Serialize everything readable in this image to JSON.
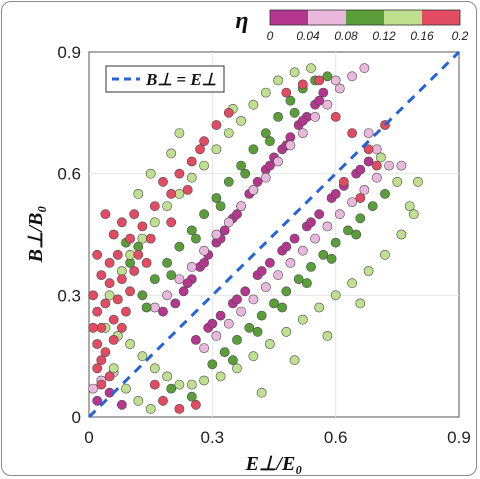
{
  "chart_data": {
    "type": "scatter",
    "xlabel": "E⊥/E₀",
    "ylabel": "B⊥/B₀",
    "xlim": [
      0,
      0.9
    ],
    "ylim": [
      0,
      0.9
    ],
    "xticks": [
      "0",
      "0.3",
      "0.6",
      "0.9"
    ],
    "yticks": [
      "0",
      "0.3",
      "0.6",
      "0.9"
    ],
    "grid": true,
    "legend": {
      "position": "top-left",
      "entries": [
        "B⊥ = E⊥"
      ]
    },
    "reference_line": {
      "label": "B⊥ = E⊥",
      "slope": 1,
      "intercept": 0,
      "style": "dashed",
      "color": "#2563d8"
    },
    "colorbar": {
      "label": "η",
      "position": "top",
      "ticks": [
        "0",
        "0.04",
        "0.08",
        "0.12",
        "0.16",
        "0.2"
      ],
      "bins": [
        {
          "range": [
            0.0,
            0.04
          ],
          "color": "#b5368f"
        },
        {
          "range": [
            0.04,
            0.08
          ],
          "color": "#e9b8dc"
        },
        {
          "range": [
            0.08,
            0.12
          ],
          "color": "#5a9e3a"
        },
        {
          "range": [
            0.12,
            0.16
          ],
          "color": "#bfe08f"
        },
        {
          "range": [
            0.16,
            0.2
          ],
          "color": "#e24b62"
        }
      ]
    },
    "series": [
      {
        "eta_bin": "0-0.04",
        "color": "#b5368f",
        "points": [
          [
            0.18,
            0.26
          ],
          [
            0.21,
            0.28
          ],
          [
            0.23,
            0.31
          ],
          [
            0.25,
            0.34
          ],
          [
            0.27,
            0.37
          ],
          [
            0.29,
            0.4
          ],
          [
            0.31,
            0.43
          ],
          [
            0.33,
            0.46
          ],
          [
            0.35,
            0.49
          ],
          [
            0.37,
            0.52
          ],
          [
            0.39,
            0.55
          ],
          [
            0.41,
            0.58
          ],
          [
            0.43,
            0.61
          ],
          [
            0.45,
            0.64
          ],
          [
            0.47,
            0.66
          ],
          [
            0.49,
            0.69
          ],
          [
            0.51,
            0.72
          ],
          [
            0.53,
            0.74
          ],
          [
            0.55,
            0.77
          ],
          [
            0.57,
            0.8
          ],
          [
            0.24,
            0.33
          ],
          [
            0.28,
            0.38
          ],
          [
            0.32,
            0.44
          ],
          [
            0.36,
            0.5
          ],
          [
            0.4,
            0.56
          ],
          [
            0.44,
            0.62
          ],
          [
            0.48,
            0.67
          ],
          [
            0.52,
            0.73
          ],
          [
            0.56,
            0.78
          ],
          [
            0.26,
            0.19
          ],
          [
            0.29,
            0.22
          ],
          [
            0.32,
            0.25
          ],
          [
            0.35,
            0.28
          ],
          [
            0.38,
            0.31
          ],
          [
            0.41,
            0.35
          ],
          [
            0.44,
            0.38
          ],
          [
            0.47,
            0.41
          ],
          [
            0.5,
            0.44
          ],
          [
            0.53,
            0.47
          ],
          [
            0.56,
            0.5
          ],
          [
            0.59,
            0.54
          ],
          [
            0.62,
            0.57
          ],
          [
            0.65,
            0.6
          ],
          [
            0.68,
            0.63
          ],
          [
            0.3,
            0.23
          ],
          [
            0.36,
            0.29
          ],
          [
            0.42,
            0.36
          ],
          [
            0.48,
            0.42
          ],
          [
            0.54,
            0.48
          ],
          [
            0.6,
            0.55
          ],
          [
            0.66,
            0.61
          ],
          [
            0.02,
            0.04
          ],
          [
            0.05,
            0.06
          ],
          [
            0.08,
            0.03
          ]
        ]
      },
      {
        "eta_bin": "0.04-0.08",
        "color": "#e9b8dc",
        "points": [
          [
            0.16,
            0.27
          ],
          [
            0.19,
            0.3
          ],
          [
            0.22,
            0.34
          ],
          [
            0.25,
            0.37
          ],
          [
            0.28,
            0.41
          ],
          [
            0.31,
            0.45
          ],
          [
            0.34,
            0.48
          ],
          [
            0.37,
            0.52
          ],
          [
            0.4,
            0.56
          ],
          [
            0.43,
            0.59
          ],
          [
            0.46,
            0.63
          ],
          [
            0.49,
            0.67
          ],
          [
            0.52,
            0.7
          ],
          [
            0.55,
            0.74
          ],
          [
            0.58,
            0.77
          ],
          [
            0.61,
            0.81
          ],
          [
            0.64,
            0.84
          ],
          [
            0.67,
            0.86
          ],
          [
            0.28,
            0.17
          ],
          [
            0.31,
            0.2
          ],
          [
            0.34,
            0.23
          ],
          [
            0.37,
            0.26
          ],
          [
            0.4,
            0.29
          ],
          [
            0.43,
            0.32
          ],
          [
            0.46,
            0.35
          ],
          [
            0.49,
            0.38
          ],
          [
            0.52,
            0.41
          ],
          [
            0.55,
            0.44
          ],
          [
            0.58,
            0.47
          ],
          [
            0.61,
            0.5
          ],
          [
            0.64,
            0.53
          ],
          [
            0.67,
            0.56
          ],
          [
            0.7,
            0.59
          ],
          [
            0.73,
            0.62
          ],
          [
            0.76,
            0.62
          ],
          [
            0.7,
            0.66
          ],
          [
            0.68,
            0.7
          ],
          [
            0.6,
            0.83
          ],
          [
            0.03,
            0.09
          ],
          [
            0.06,
            0.11
          ],
          [
            0.01,
            0.07
          ]
        ]
      },
      {
        "eta_bin": "0.08-0.12",
        "color": "#5a9e3a",
        "points": [
          [
            0.13,
            0.3
          ],
          [
            0.16,
            0.34
          ],
          [
            0.19,
            0.38
          ],
          [
            0.22,
            0.42
          ],
          [
            0.25,
            0.46
          ],
          [
            0.28,
            0.5
          ],
          [
            0.31,
            0.54
          ],
          [
            0.34,
            0.58
          ],
          [
            0.37,
            0.62
          ],
          [
            0.4,
            0.66
          ],
          [
            0.43,
            0.7
          ],
          [
            0.46,
            0.74
          ],
          [
            0.49,
            0.78
          ],
          [
            0.52,
            0.81
          ],
          [
            0.55,
            0.83
          ],
          [
            0.58,
            0.84
          ],
          [
            0.14,
            0.27
          ],
          [
            0.2,
            0.35
          ],
          [
            0.26,
            0.44
          ],
          [
            0.32,
            0.52
          ],
          [
            0.38,
            0.6
          ],
          [
            0.44,
            0.68
          ],
          [
            0.5,
            0.75
          ],
          [
            0.3,
            0.13
          ],
          [
            0.33,
            0.16
          ],
          [
            0.36,
            0.19
          ],
          [
            0.39,
            0.22
          ],
          [
            0.42,
            0.25
          ],
          [
            0.45,
            0.28
          ],
          [
            0.48,
            0.31
          ],
          [
            0.51,
            0.34
          ],
          [
            0.54,
            0.37
          ],
          [
            0.57,
            0.4
          ],
          [
            0.6,
            0.43
          ],
          [
            0.63,
            0.46
          ],
          [
            0.66,
            0.49
          ],
          [
            0.69,
            0.52
          ],
          [
            0.72,
            0.55
          ],
          [
            0.35,
            0.14
          ],
          [
            0.41,
            0.21
          ],
          [
            0.47,
            0.27
          ],
          [
            0.53,
            0.33
          ],
          [
            0.59,
            0.39
          ],
          [
            0.65,
            0.45
          ],
          [
            0.12,
            0.42
          ],
          [
            0.1,
            0.38
          ],
          [
            0.09,
            0.43
          ],
          [
            0.2,
            0.07
          ],
          [
            0.25,
            0.05
          ]
        ]
      },
      {
        "eta_bin": "0.12-0.16",
        "color": "#bfe08f",
        "points": [
          [
            0.08,
            0.36
          ],
          [
            0.1,
            0.4
          ],
          [
            0.13,
            0.44
          ],
          [
            0.16,
            0.48
          ],
          [
            0.19,
            0.52
          ],
          [
            0.22,
            0.55
          ],
          [
            0.25,
            0.59
          ],
          [
            0.28,
            0.62
          ],
          [
            0.31,
            0.66
          ],
          [
            0.34,
            0.7
          ],
          [
            0.37,
            0.73
          ],
          [
            0.4,
            0.77
          ],
          [
            0.43,
            0.8
          ],
          [
            0.46,
            0.83
          ],
          [
            0.5,
            0.85
          ],
          [
            0.54,
            0.86
          ],
          [
            0.2,
            0.65
          ],
          [
            0.15,
            0.6
          ],
          [
            0.22,
            0.7
          ],
          [
            0.35,
            0.76
          ],
          [
            0.04,
            0.22
          ],
          [
            0.07,
            0.2
          ],
          [
            0.1,
            0.18
          ],
          [
            0.13,
            0.15
          ],
          [
            0.16,
            0.12
          ],
          [
            0.19,
            0.1
          ],
          [
            0.22,
            0.08
          ],
          [
            0.25,
            0.08
          ],
          [
            0.28,
            0.09
          ],
          [
            0.32,
            0.1
          ],
          [
            0.36,
            0.12
          ],
          [
            0.4,
            0.15
          ],
          [
            0.44,
            0.18
          ],
          [
            0.48,
            0.21
          ],
          [
            0.52,
            0.24
          ],
          [
            0.56,
            0.27
          ],
          [
            0.6,
            0.3
          ],
          [
            0.64,
            0.33
          ],
          [
            0.68,
            0.36
          ],
          [
            0.72,
            0.4
          ],
          [
            0.76,
            0.45
          ],
          [
            0.78,
            0.52
          ],
          [
            0.8,
            0.58
          ],
          [
            0.79,
            0.5
          ],
          [
            0.75,
            0.58
          ],
          [
            0.71,
            0.64
          ],
          [
            0.06,
            0.12
          ],
          [
            0.09,
            0.07
          ],
          [
            0.12,
            0.04
          ],
          [
            0.15,
            0.02
          ],
          [
            0.42,
            0.06
          ],
          [
            0.5,
            0.14
          ],
          [
            0.58,
            0.2
          ],
          [
            0.66,
            0.28
          ],
          [
            0.12,
            0.55
          ],
          [
            0.05,
            0.3
          ]
        ]
      },
      {
        "eta_bin": "0.16-0.2",
        "color": "#e24b62",
        "points": [
          [
            0.01,
            0.3
          ],
          [
            0.02,
            0.26
          ],
          [
            0.03,
            0.22
          ],
          [
            0.04,
            0.28
          ],
          [
            0.05,
            0.33
          ],
          [
            0.02,
            0.18
          ],
          [
            0.03,
            0.14
          ],
          [
            0.06,
            0.24
          ],
          [
            0.07,
            0.29
          ],
          [
            0.08,
            0.34
          ],
          [
            0.09,
            0.26
          ],
          [
            0.1,
            0.31
          ],
          [
            0.11,
            0.36
          ],
          [
            0.04,
            0.16
          ],
          [
            0.06,
            0.19
          ],
          [
            0.08,
            0.22
          ],
          [
            0.01,
            0.22
          ],
          [
            0.0,
            0.26
          ],
          [
            0.05,
            0.38
          ],
          [
            0.07,
            0.4
          ],
          [
            0.03,
            0.35
          ],
          [
            0.1,
            0.44
          ],
          [
            0.06,
            0.45
          ],
          [
            0.12,
            0.4
          ],
          [
            0.14,
            0.38
          ],
          [
            0.13,
            0.47
          ],
          [
            0.11,
            0.5
          ],
          [
            0.16,
            0.52
          ],
          [
            0.08,
            0.48
          ],
          [
            0.02,
            0.4
          ],
          [
            0.2,
            0.55
          ],
          [
            0.22,
            0.6
          ],
          [
            0.25,
            0.63
          ],
          [
            0.28,
            0.68
          ],
          [
            0.18,
            0.58
          ],
          [
            0.31,
            0.72
          ],
          [
            0.34,
            0.75
          ],
          [
            0.27,
            0.66
          ],
          [
            0.2,
            0.48
          ],
          [
            0.24,
            0.56
          ],
          [
            0.03,
            0.08
          ],
          [
            0.05,
            0.1
          ],
          [
            0.02,
            0.12
          ],
          [
            0.18,
            0.04
          ],
          [
            0.22,
            0.02
          ],
          [
            0.16,
            0.08
          ],
          [
            0.26,
            0.03
          ],
          [
            0.48,
            0.8
          ],
          [
            0.52,
            0.82
          ],
          [
            0.6,
            0.74
          ],
          [
            0.64,
            0.7
          ],
          [
            0.68,
            0.66
          ],
          [
            0.72,
            0.72
          ],
          [
            0.7,
            0.62
          ],
          [
            0.66,
            0.54
          ],
          [
            0.62,
            0.58
          ],
          [
            0.56,
            0.83
          ],
          [
            0.04,
            0.5
          ],
          [
            0.15,
            0.44
          ]
        ]
      }
    ]
  }
}
